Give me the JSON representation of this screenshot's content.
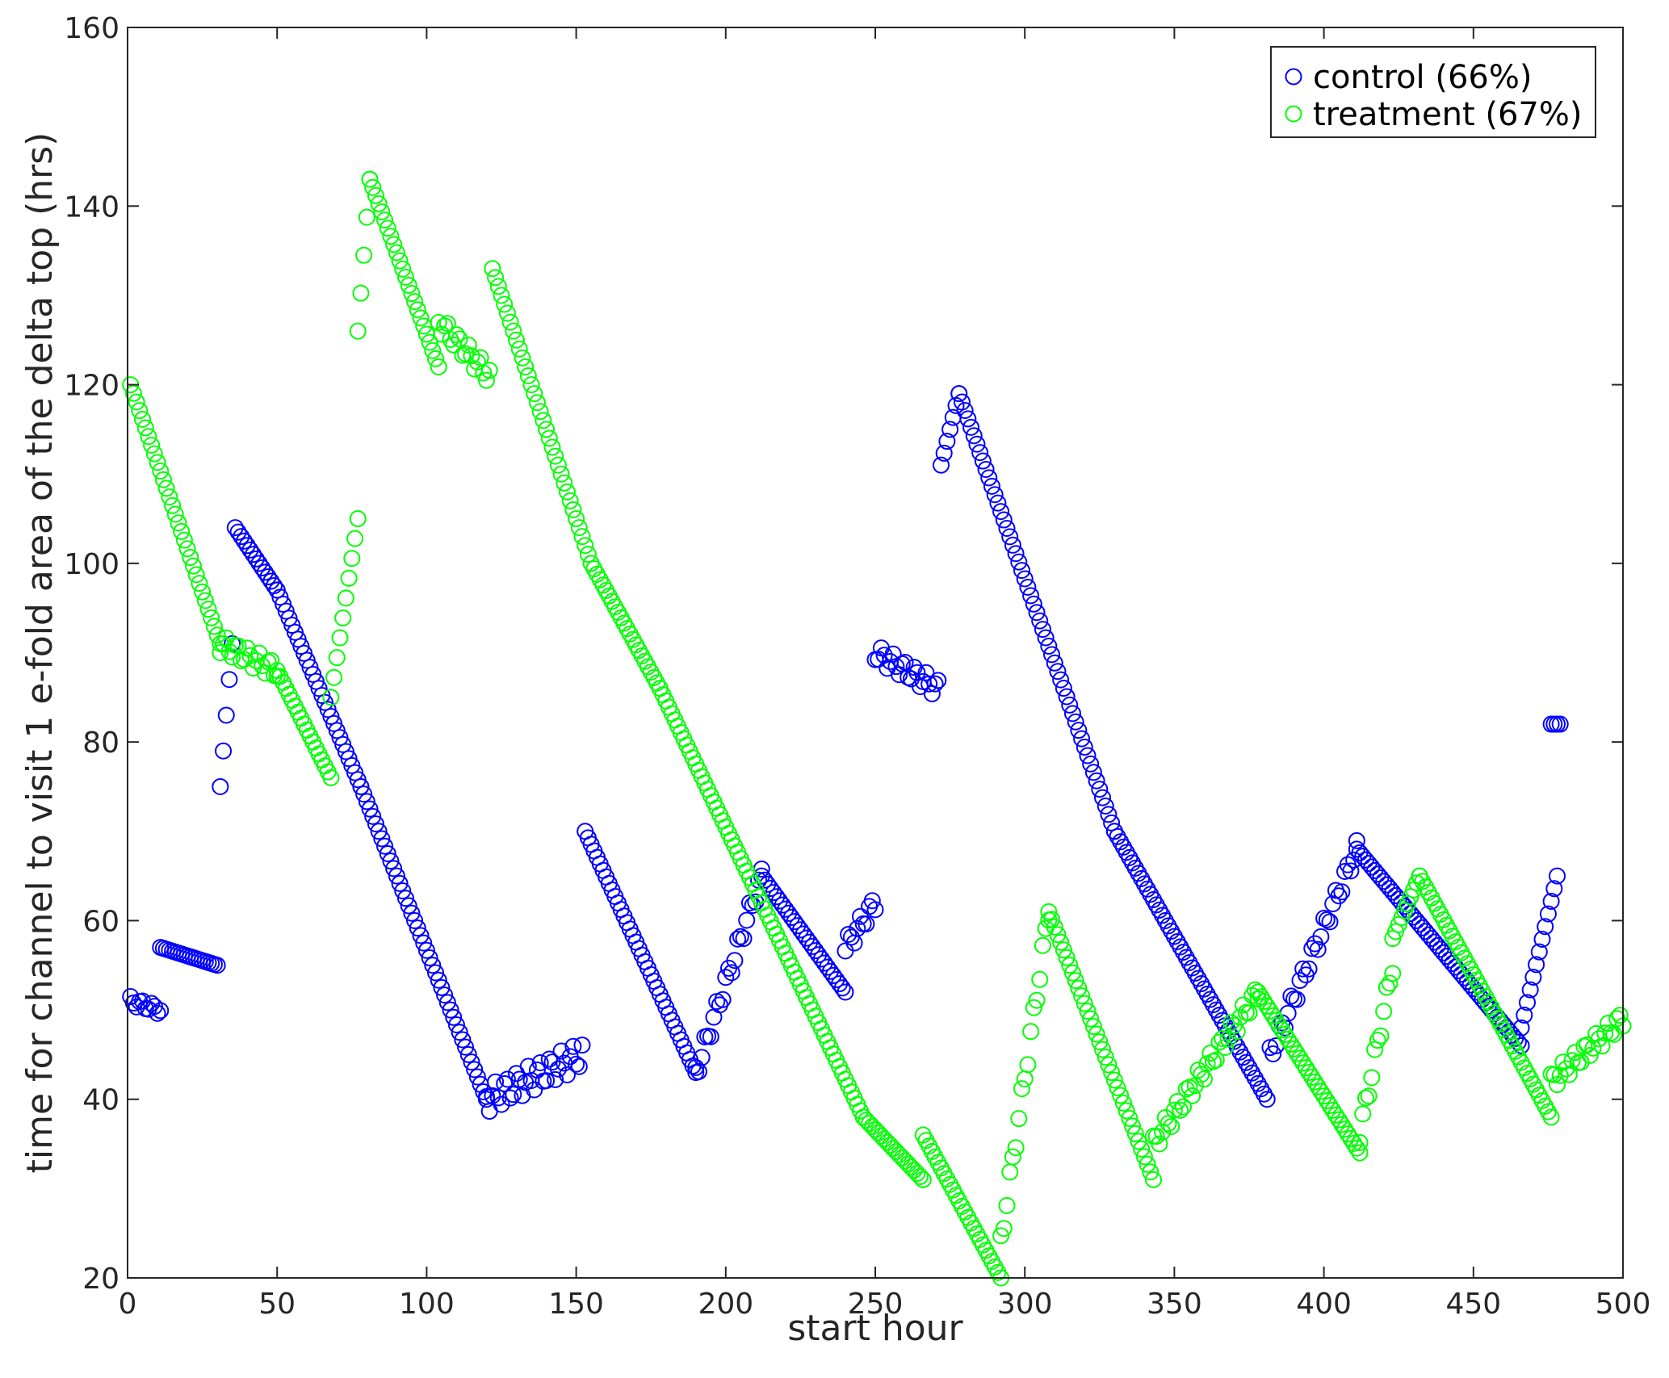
{
  "chart_data": {
    "type": "scatter",
    "title": "",
    "xlabel": "start hour",
    "ylabel": "time for channel to visit 1 e-fold area of the delta top (hrs)",
    "xlim": [
      0,
      500
    ],
    "ylim": [
      20,
      160
    ],
    "xticks": [
      0,
      50,
      100,
      150,
      200,
      250,
      300,
      350,
      400,
      450,
      500
    ],
    "yticks": [
      20,
      40,
      60,
      80,
      100,
      120,
      140,
      160
    ],
    "grid": false,
    "legend_position": "top-right",
    "marker": "open-circle",
    "series": [
      {
        "name": "control (66%)",
        "color": "#0000ff",
        "segments": [
          {
            "x0": 1,
            "x1": 11,
            "y0": 51,
            "y1": 50,
            "noise": 1
          },
          {
            "x0": 11,
            "x1": 30,
            "y0": 57,
            "y1": 55
          },
          {
            "x0": 31,
            "x1": 35,
            "y0": 75,
            "y1": 91
          },
          {
            "x0": 36,
            "x1": 50,
            "y0": 104,
            "y1": 97
          },
          {
            "x0": 50,
            "x1": 78,
            "y0": 97,
            "y1": 75
          },
          {
            "x0": 78,
            "x1": 120,
            "y0": 75,
            "y1": 40
          },
          {
            "x0": 120,
            "x1": 152,
            "y0": 40,
            "y1": 45,
            "noise": 3
          },
          {
            "x0": 153,
            "x1": 190,
            "y0": 70,
            "y1": 43
          },
          {
            "x0": 190,
            "x1": 212,
            "y0": 43,
            "y1": 65,
            "noise": 2
          },
          {
            "x0": 212,
            "x1": 240,
            "y0": 65,
            "y1": 52
          },
          {
            "x0": 240,
            "x1": 250,
            "y0": 57,
            "y1": 62,
            "noise": 2
          },
          {
            "x0": 250,
            "x1": 271,
            "y0": 90,
            "y1": 86,
            "noise": 2
          },
          {
            "x0": 272,
            "x1": 278,
            "y0": 111,
            "y1": 119
          },
          {
            "x0": 278,
            "x1": 330,
            "y0": 119,
            "y1": 70
          },
          {
            "x0": 330,
            "x1": 381,
            "y0": 70,
            "y1": 40
          },
          {
            "x0": 382,
            "x1": 411,
            "y0": 45,
            "y1": 68,
            "noise": 2
          },
          {
            "x0": 411,
            "x1": 466,
            "y0": 68,
            "y1": 46
          },
          {
            "x0": 466,
            "x1": 478,
            "y0": 48,
            "y1": 65
          },
          {
            "x0": 476,
            "x1": 479,
            "y0": 82,
            "y1": 82
          }
        ]
      },
      {
        "name": "treatment (67%)",
        "color": "#00ff00",
        "segments": [
          {
            "x0": 1,
            "x1": 31,
            "y0": 120,
            "y1": 91
          },
          {
            "x0": 31,
            "x1": 50,
            "y0": 91,
            "y1": 88,
            "noise": 2
          },
          {
            "x0": 50,
            "x1": 68,
            "y0": 88,
            "y1": 76
          },
          {
            "x0": 68,
            "x1": 77,
            "y0": 85,
            "y1": 105
          },
          {
            "x0": 77,
            "x1": 81,
            "y0": 126,
            "y1": 143
          },
          {
            "x0": 81,
            "x1": 104,
            "y0": 143,
            "y1": 122
          },
          {
            "x0": 104,
            "x1": 121,
            "y0": 127,
            "y1": 121,
            "noise": 2
          },
          {
            "x0": 122,
            "x1": 155,
            "y0": 133,
            "y1": 100
          },
          {
            "x0": 155,
            "x1": 178,
            "y0": 100,
            "y1": 86
          },
          {
            "x0": 178,
            "x1": 246,
            "y0": 86,
            "y1": 38
          },
          {
            "x0": 246,
            "x1": 266,
            "y0": 38,
            "y1": 31
          },
          {
            "x0": 266,
            "x1": 292,
            "y0": 36,
            "y1": 20
          },
          {
            "x0": 292,
            "x1": 308,
            "y0": 24,
            "y1": 61,
            "noise": 2
          },
          {
            "x0": 308,
            "x1": 343,
            "y0": 61,
            "y1": 31
          },
          {
            "x0": 343,
            "x1": 378,
            "y0": 35,
            "y1": 52,
            "noise": 2
          },
          {
            "x0": 378,
            "x1": 412,
            "y0": 52,
            "y1": 34
          },
          {
            "x0": 412,
            "x1": 423,
            "y0": 36,
            "y1": 55,
            "noise": 2
          },
          {
            "x0": 423,
            "x1": 432,
            "y0": 58,
            "y1": 65
          },
          {
            "x0": 432,
            "x1": 476,
            "y0": 65,
            "y1": 38
          },
          {
            "x0": 476,
            "x1": 500,
            "y0": 42,
            "y1": 49,
            "noise": 2
          }
        ]
      }
    ]
  }
}
